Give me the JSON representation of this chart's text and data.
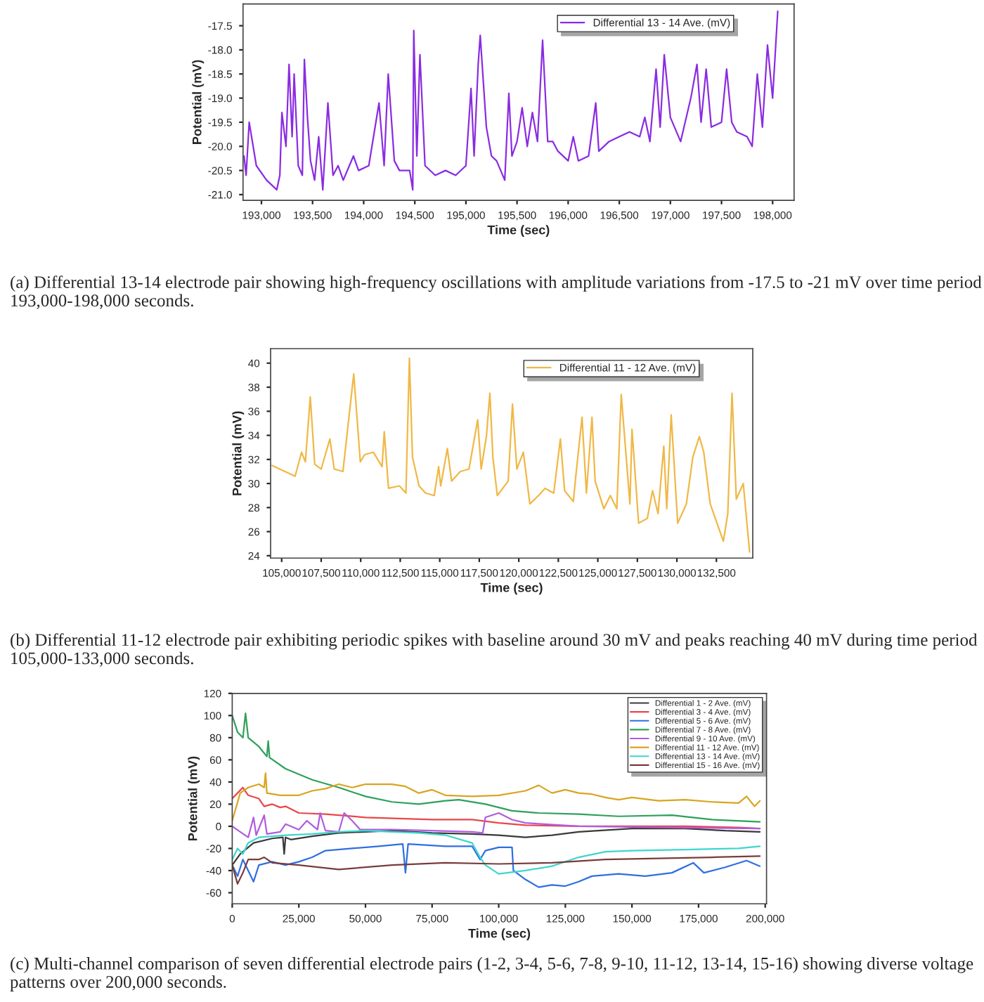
{
  "chart_data": [
    {
      "type": "line",
      "xlabel": "Time (sec)",
      "ylabel": "Potential (mV)",
      "legend": "top right",
      "grid": false,
      "xlim": [
        192820,
        198210
      ],
      "ylim": [
        -21.12,
        -17.05
      ],
      "xticks": [
        {
          "value": 193000,
          "label": "193,000"
        },
        {
          "value": 193500,
          "label": "193,500"
        },
        {
          "value": 194000,
          "label": "194,000"
        },
        {
          "value": 194500,
          "label": "194,500"
        },
        {
          "value": 195000,
          "label": "195,000"
        },
        {
          "value": 195500,
          "label": "195,500"
        },
        {
          "value": 196000,
          "label": "196,000"
        },
        {
          "value": 196500,
          "label": "196,500"
        },
        {
          "value": 197000,
          "label": "197,000"
        },
        {
          "value": 197500,
          "label": "197,500"
        },
        {
          "value": 198000,
          "label": "198,000"
        }
      ],
      "yticks": [
        {
          "value": -21.0,
          "label": "-21.0"
        },
        {
          "value": -20.5,
          "label": "-20.5"
        },
        {
          "value": -20.0,
          "label": "-20.0"
        },
        {
          "value": -19.5,
          "label": "-19.5"
        },
        {
          "value": -19.0,
          "label": "-19.0"
        },
        {
          "value": -18.5,
          "label": "-18.5"
        },
        {
          "value": -18.0,
          "label": "-18.0"
        },
        {
          "value": -17.5,
          "label": "-17.5"
        }
      ],
      "annotations": [
        "(a) Differential 13-14 electrode pair showing high-frequency oscillations with amplitude variations from -17.5 to -21 mV over time period 193,000-198,000 seconds."
      ],
      "series": [
        {
          "name": "Differential 13 - 14 Ave. (mV)",
          "color": "#8a2be2",
          "x": [
            192830,
            192850,
            192880,
            192950,
            193050,
            193150,
            193180,
            193200,
            193240,
            193270,
            193300,
            193320,
            193360,
            193400,
            193420,
            193450,
            193480,
            193520,
            193560,
            193600,
            193650,
            193700,
            193750,
            193800,
            193900,
            193950,
            194050,
            194150,
            194200,
            194240,
            194300,
            194350,
            194450,
            194480,
            194490,
            194520,
            194550,
            194600,
            194700,
            194800,
            194900,
            195000,
            195050,
            195080,
            195120,
            195140,
            195200,
            195250,
            195300,
            195380,
            195420,
            195450,
            195500,
            195550,
            195600,
            195650,
            195700,
            195750,
            195800,
            195850,
            195900,
            196000,
            196050,
            196100,
            196200,
            196270,
            196300,
            196400,
            196500,
            196600,
            196700,
            196750,
            196800,
            196860,
            196900,
            196940,
            197000,
            197100,
            197200,
            197260,
            197300,
            197350,
            197400,
            197500,
            197550,
            197600,
            197650,
            197750,
            197800,
            197850,
            197900,
            197950,
            198000,
            198050
          ],
          "values": [
            -20.2,
            -20.6,
            -19.5,
            -20.4,
            -20.7,
            -20.9,
            -20.6,
            -19.3,
            -20.0,
            -18.3,
            -19.8,
            -18.5,
            -20.4,
            -20.6,
            -18.2,
            -19.4,
            -20.3,
            -20.7,
            -19.8,
            -20.9,
            -19.1,
            -20.6,
            -20.4,
            -20.7,
            -20.2,
            -20.5,
            -20.4,
            -19.1,
            -20.4,
            -18.5,
            -20.3,
            -20.5,
            -20.5,
            -20.9,
            -17.6,
            -20.2,
            -18.1,
            -20.4,
            -20.6,
            -20.5,
            -20.6,
            -20.4,
            -18.8,
            -20.2,
            -18.3,
            -17.7,
            -19.6,
            -20.2,
            -20.3,
            -20.7,
            -18.9,
            -20.2,
            -19.9,
            -19.2,
            -20.0,
            -19.3,
            -19.9,
            -17.8,
            -19.9,
            -19.9,
            -20.1,
            -20.3,
            -19.8,
            -20.3,
            -20.2,
            -19.1,
            -20.1,
            -19.9,
            -19.8,
            -19.7,
            -19.8,
            -19.4,
            -19.9,
            -18.4,
            -19.6,
            -18.1,
            -19.4,
            -19.9,
            -19.0,
            -18.3,
            -19.5,
            -18.4,
            -19.6,
            -19.5,
            -18.4,
            -19.5,
            -19.7,
            -19.8,
            -20.0,
            -18.5,
            -19.6,
            -17.9,
            -19.0,
            -17.2
          ]
        }
      ]
    },
    {
      "type": "line",
      "xlabel": "Time (sec)",
      "ylabel": "Potential (mV)",
      "legend": "top right",
      "grid": false,
      "xlim": [
        104300,
        134800
      ],
      "ylim": [
        23.8,
        41.2
      ],
      "xticks": [
        {
          "value": 105000,
          "label": "105,000"
        },
        {
          "value": 107500,
          "label": "107,500"
        },
        {
          "value": 110000,
          "label": "110,000"
        },
        {
          "value": 112500,
          "label": "112,500"
        },
        {
          "value": 115000,
          "label": "115,000"
        },
        {
          "value": 117500,
          "label": "117,500"
        },
        {
          "value": 120000,
          "label": "120,000"
        },
        {
          "value": 122500,
          "label": "122,500"
        },
        {
          "value": 125000,
          "label": "125,000"
        },
        {
          "value": 127500,
          "label": "127,500"
        },
        {
          "value": 130000,
          "label": "130,000"
        },
        {
          "value": 132500,
          "label": "132,500"
        }
      ],
      "yticks": [
        24,
        26,
        28,
        30,
        32,
        34,
        36,
        38,
        40
      ],
      "annotations": [
        "(b) Differential 11-12 electrode pair exhibiting periodic spikes with baseline around 30 mV and peaks reaching 40 mV during time period 105,000-133,000 seconds."
      ],
      "series": [
        {
          "name": "Differential 11 - 12 Ave. (mV)",
          "color": "#f0b845",
          "x": [
            104400,
            105850,
            106260,
            106500,
            106810,
            107090,
            107500,
            108050,
            108325,
            108875,
            109560,
            109975,
            110250,
            110800,
            111350,
            111490,
            111760,
            112450,
            112860,
            113080,
            113275,
            113690,
            114100,
            114650,
            114930,
            115060,
            115480,
            115750,
            116300,
            116850,
            117400,
            117620,
            117950,
            118170,
            118360,
            118640,
            119330,
            119600,
            119875,
            120290,
            120700,
            121250,
            121660,
            122210,
            122630,
            122900,
            123450,
            123590,
            124000,
            124280,
            124630,
            124830,
            125380,
            125790,
            126200,
            126480,
            127030,
            127160,
            127580,
            128130,
            128460,
            128810,
            129170,
            129360,
            129640,
            130050,
            130600,
            131010,
            131420,
            131700,
            132110,
            132940,
            133220,
            133490,
            133760,
            134200,
            134600
          ],
          "values": [
            31.5,
            30.6,
            32.6,
            31.8,
            37.2,
            31.6,
            31.2,
            33.7,
            31.2,
            31.0,
            39.1,
            31.8,
            32.4,
            32.6,
            31.4,
            34.3,
            29.6,
            29.8,
            29.2,
            40.4,
            32.2,
            29.8,
            29.2,
            29.0,
            31.4,
            29.8,
            32.9,
            30.2,
            31.0,
            31.2,
            35.3,
            31.2,
            33.9,
            37.5,
            32.2,
            29.0,
            30.2,
            36.6,
            31.2,
            32.6,
            28.3,
            29.0,
            29.6,
            29.2,
            33.7,
            29.4,
            28.5,
            30.4,
            35.5,
            29.2,
            35.5,
            30.2,
            27.9,
            29.0,
            27.9,
            37.4,
            28.3,
            34.5,
            26.7,
            27.1,
            29.4,
            27.5,
            33.1,
            27.9,
            35.7,
            26.7,
            28.3,
            32.2,
            33.9,
            32.6,
            28.3,
            25.2,
            27.5,
            37.5,
            28.7,
            30.0,
            24.3
          ]
        }
      ]
    },
    {
      "type": "line",
      "xlabel": "Time (sec)",
      "ylabel": "Potential (mV)",
      "legend": "top right",
      "grid": false,
      "xlim": [
        0,
        200500
      ],
      "ylim": [
        -70,
        120
      ],
      "xticks": [
        0,
        {
          "value": 25000,
          "label": "25,000"
        },
        {
          "value": 50000,
          "label": "50,000"
        },
        {
          "value": 75000,
          "label": "75,000"
        },
        {
          "value": 100000,
          "label": "100,000"
        },
        {
          "value": 125000,
          "label": "125,000"
        },
        {
          "value": 150000,
          "label": "150,000"
        },
        {
          "value": 175000,
          "label": "175,000"
        },
        {
          "value": 200000,
          "label": "200,000"
        }
      ],
      "yticks": [
        -60,
        -40,
        -20,
        0,
        20,
        40,
        60,
        80,
        100,
        120
      ],
      "annotations": [
        "(c) Multi-channel comparison of seven differential electrode pairs (1-2, 3-4, 5-6, 7-8, 9-10, 11-12, 13-14, 15-16) showing diverse voltage patterns over 200,000 seconds."
      ],
      "series": [
        {
          "name": "Differential 1 - 2 Ave. (mV)",
          "color": "#3a3a3a",
          "x": [
            0,
            3000,
            8000,
            15000,
            19000,
            19500,
            20000,
            22000,
            30000,
            40000,
            50000,
            60000,
            75000,
            90000,
            100000,
            110000,
            120000,
            130000,
            150000,
            170000,
            185000,
            198000
          ],
          "values": [
            -35,
            -25,
            -15,
            -11,
            -10,
            -25,
            -10,
            -12,
            -9,
            -6,
            -5,
            -4,
            -6,
            -7,
            -8,
            -10,
            -8,
            -5,
            -2,
            -2,
            -4,
            -5
          ]
        },
        {
          "name": "Differential 3 - 4 Ave. (mV)",
          "color": "#e8474a",
          "x": [
            0,
            2000,
            4000,
            6000,
            10000,
            12000,
            15000,
            18000,
            20000,
            25000,
            35000,
            50000,
            75000,
            90000,
            100000,
            110000,
            130000,
            150000,
            170000,
            190000,
            198000
          ],
          "values": [
            25,
            30,
            35,
            28,
            25,
            18,
            20,
            17,
            18,
            12,
            11,
            8,
            6,
            6,
            3,
            1,
            0,
            0,
            0,
            -1,
            -2
          ]
        },
        {
          "name": "Differential 5 - 6 Ave. (mV)",
          "color": "#2f6fe0",
          "x": [
            0,
            2000,
            4000,
            6000,
            8000,
            10000,
            15000,
            20000,
            25000,
            30000,
            35000,
            45000,
            55000,
            64000,
            65000,
            66000,
            80000,
            90000,
            93000,
            95000,
            100000,
            105000,
            105500,
            110000,
            115000,
            120000,
            125000,
            130000,
            135000,
            145000,
            155000,
            165000,
            173000,
            177000,
            185000,
            193000,
            198000
          ],
          "values": [
            -35,
            -45,
            -30,
            -40,
            -50,
            -35,
            -32,
            -35,
            -32,
            -28,
            -22,
            -20,
            -18,
            -16,
            -42,
            -16,
            -18,
            -18,
            -30,
            -22,
            -19,
            -19,
            -40,
            -48,
            -55,
            -53,
            -54,
            -50,
            -45,
            -43,
            -45,
            -42,
            -33,
            -42,
            -37,
            -31,
            -36
          ]
        },
        {
          "name": "Differential 7 - 8 Ave. (mV)",
          "color": "#2fa05a",
          "x": [
            0,
            2000,
            4000,
            5000,
            6000,
            10000,
            13000,
            13500,
            14000,
            20000,
            30000,
            40000,
            50000,
            60000,
            70000,
            80000,
            85000,
            95000,
            105000,
            115000,
            130000,
            145000,
            165000,
            180000,
            198000
          ],
          "values": [
            100,
            85,
            80,
            102,
            80,
            72,
            63,
            77,
            62,
            52,
            42,
            35,
            27,
            22,
            20,
            23,
            24,
            20,
            14,
            12,
            11,
            9,
            10,
            6,
            4
          ]
        },
        {
          "name": "Differential 9 - 10 Ave. (mV)",
          "color": "#b05ce0",
          "x": [
            0,
            3000,
            6000,
            8000,
            9000,
            12000,
            13000,
            18000,
            20000,
            25000,
            28000,
            32000,
            33000,
            35000,
            40000,
            42000,
            45000,
            48000,
            60000,
            75000,
            90000,
            94000,
            95000,
            100000,
            105000,
            110000,
            130000,
            160000,
            198000
          ],
          "values": [
            0,
            -5,
            -10,
            8,
            -8,
            10,
            -7,
            -5,
            2,
            -3,
            5,
            -3,
            12,
            -4,
            -5,
            12,
            5,
            -3,
            -3,
            -4,
            -5,
            -6,
            8,
            12,
            6,
            3,
            0,
            -1,
            -2
          ]
        },
        {
          "name": "Differential 11 - 12 Ave. (mV)",
          "color": "#d9a520",
          "x": [
            0,
            3000,
            6000,
            10000,
            12000,
            12500,
            13000,
            18000,
            25000,
            30000,
            35000,
            40000,
            45000,
            50000,
            60000,
            65000,
            70000,
            75000,
            80000,
            90000,
            100000,
            110000,
            115000,
            120000,
            125000,
            130000,
            135000,
            140000,
            145000,
            150000,
            160000,
            170000,
            180000,
            190000,
            193000,
            196000,
            198000
          ],
          "values": [
            5,
            30,
            35,
            38,
            35,
            48,
            30,
            28,
            28,
            32,
            34,
            38,
            35,
            38,
            38,
            36,
            30,
            33,
            28,
            27,
            28,
            32,
            37,
            30,
            33,
            30,
            29,
            26,
            24,
            26,
            23,
            24,
            22,
            21,
            27,
            18,
            23
          ]
        },
        {
          "name": "Differential 13 - 14 Ave. (mV)",
          "color": "#3ed6cc",
          "x": [
            0,
            2000,
            4000,
            6000,
            10000,
            20000,
            30000,
            40000,
            50000,
            60000,
            70000,
            80000,
            90000,
            93000,
            95000,
            100000,
            110000,
            120000,
            130000,
            140000,
            150000,
            170000,
            190000,
            198000
          ],
          "values": [
            -30,
            -20,
            -25,
            -15,
            -10,
            -8,
            -7,
            -5,
            -4,
            -5,
            -6,
            -8,
            -15,
            -28,
            -35,
            -43,
            -40,
            -36,
            -28,
            -23,
            -22,
            -21,
            -20,
            -18
          ]
        },
        {
          "name": "Differential 15 - 16 Ave. (mV)",
          "color": "#7a3b3b",
          "x": [
            0,
            2000,
            4000,
            6000,
            10000,
            12000,
            15000,
            25000,
            40000,
            60000,
            80000,
            100000,
            120000,
            140000,
            160000,
            180000,
            198000
          ],
          "values": [
            -35,
            -52,
            -42,
            -30,
            -30,
            -28,
            -33,
            -35,
            -39,
            -35,
            -33,
            -34,
            -33,
            -30,
            -29,
            -28,
            -27
          ]
        }
      ]
    }
  ]
}
